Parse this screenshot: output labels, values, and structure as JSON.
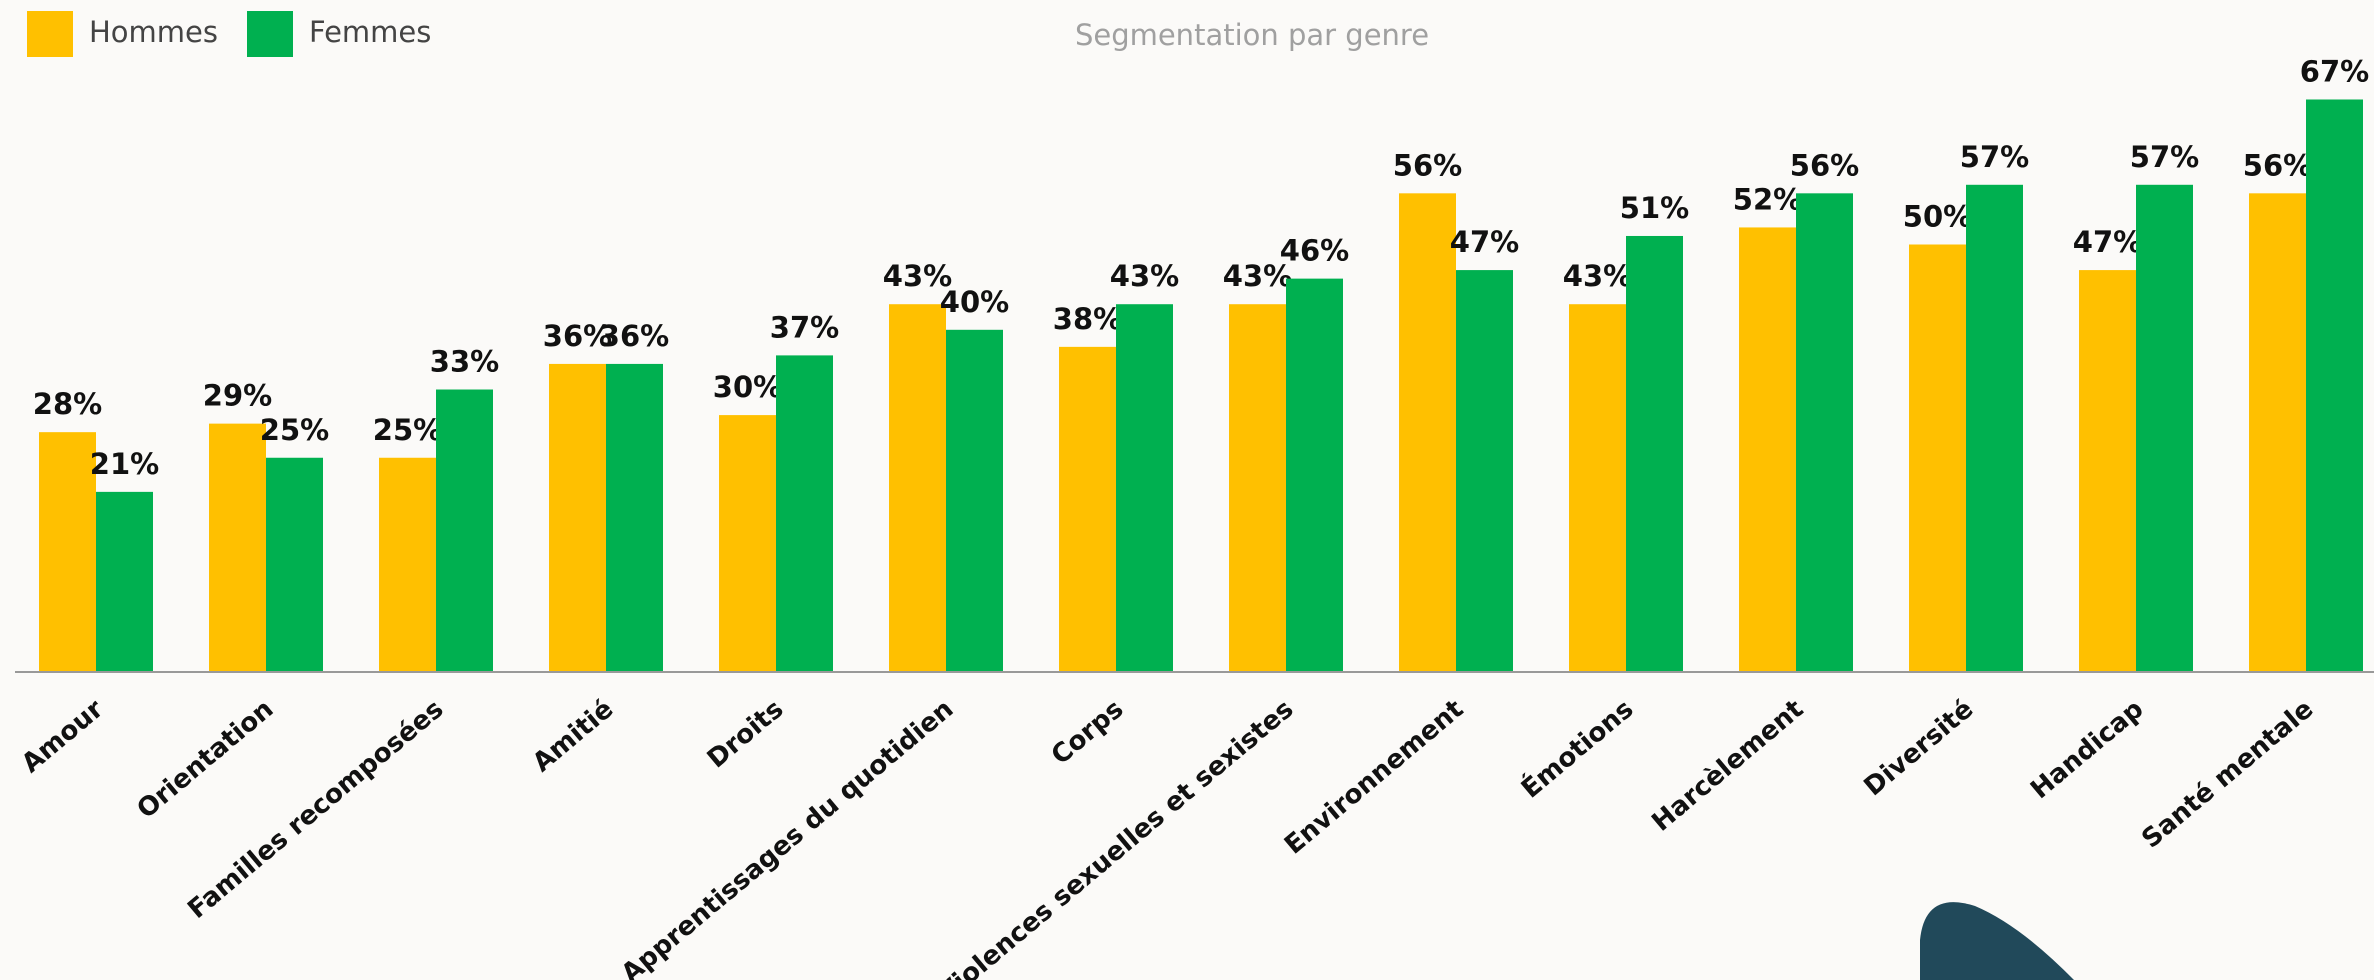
{
  "chart_data": {
    "type": "bar",
    "title": "Segmentation par genre",
    "categories": [
      "Amour",
      "Orientation",
      "Familles recomposées",
      "Amitié",
      "Droits",
      "Apprentissages du quotidien",
      "Corps",
      "Violences sexuelles et sexistes",
      "Environnement",
      "Émotions",
      "Harcèlement",
      "Diversité",
      "Handicap",
      "Santé mentale"
    ],
    "series": [
      {
        "name": "Hommes",
        "color": "#FFC000",
        "values": [
          28,
          29,
          25,
          36,
          30,
          43,
          38,
          43,
          56,
          43,
          52,
          50,
          47,
          56
        ],
        "value_labels": [
          "28%",
          "29%",
          "25%",
          "36%",
          "30%",
          "43%",
          "38%",
          "43%",
          "56%",
          "43%",
          "52%",
          "50%",
          "47%",
          "56%"
        ]
      },
      {
        "name": "Femmes",
        "color": "#00B050",
        "values": [
          21,
          25,
          33,
          36,
          37,
          40,
          43,
          46,
          47,
          51,
          56,
          57,
          57,
          67
        ],
        "value_labels": [
          "21%",
          "25%",
          "33%",
          "36%",
          "37%",
          "40%",
          "43%",
          "46%",
          "47%",
          "51%",
          "56%",
          "57%",
          "57%",
          "67%"
        ]
      }
    ]
  }
}
